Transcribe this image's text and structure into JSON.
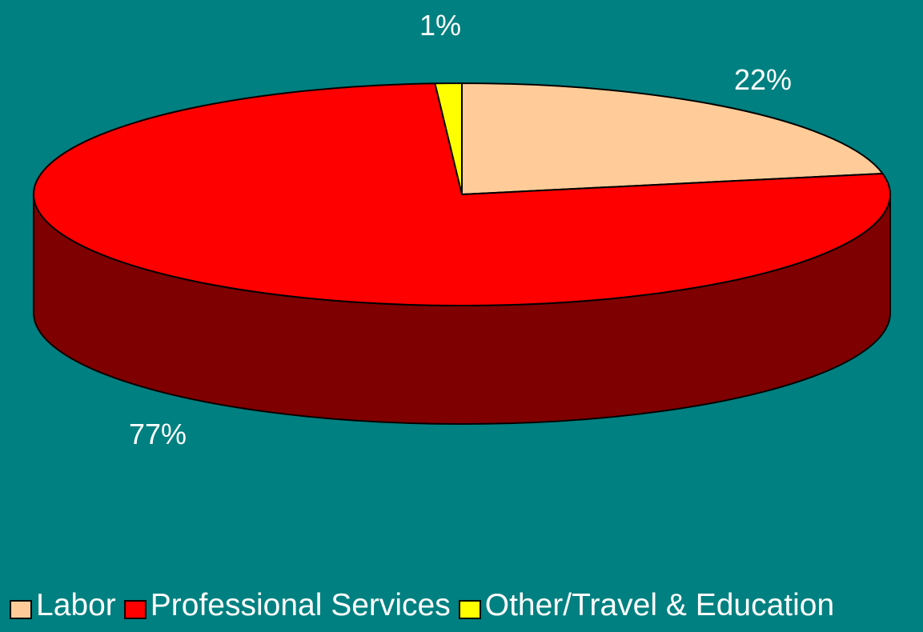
{
  "chart_data": {
    "type": "pie",
    "style": "3d",
    "categories": [
      "Labor",
      "Professional Services",
      "Other/Travel & Education"
    ],
    "values": [
      22,
      77,
      1
    ],
    "data_labels": [
      "22%",
      "77%",
      "1%"
    ],
    "colors": [
      "#FFCC99",
      "#FF0000",
      "#FFFF00"
    ],
    "side_colors": [
      "#C8A078",
      "#7F0000",
      "#C8C800"
    ],
    "legend_position": "bottom",
    "background": "#008080",
    "title": ""
  }
}
